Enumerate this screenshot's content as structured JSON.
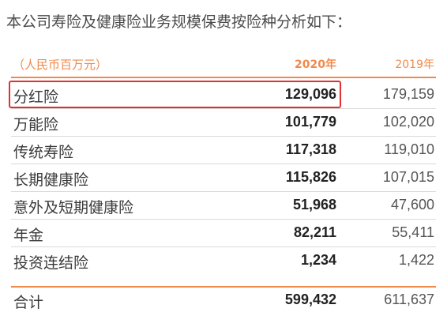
{
  "intro": "本公司寿险及健康险业务规模保费按险种分析如下：",
  "table": {
    "unit": "（人民币百万元）",
    "col_2020": "2020年",
    "col_2019": "2019年",
    "rows": [
      {
        "name": "分红险",
        "v2020": "129,096",
        "v2019": "179,159"
      },
      {
        "name": "万能险",
        "v2020": "101,779",
        "v2019": "102,020"
      },
      {
        "name": "传统寿险",
        "v2020": "117,318",
        "v2019": "119,010"
      },
      {
        "name": "长期健康险",
        "v2020": "115,826",
        "v2019": "107,015"
      },
      {
        "name": "意外及短期健康险",
        "v2020": "51,968",
        "v2019": "47,600"
      },
      {
        "name": "年金",
        "v2020": "82,211",
        "v2019": "55,411"
      },
      {
        "name": "投资连结险",
        "v2020": "1,234",
        "v2019": "1,422"
      }
    ],
    "total": {
      "name": "合计",
      "v2020": "599,432",
      "v2019": "611,637"
    }
  },
  "colors": {
    "accent": "#f08a4b",
    "highlight": "#e03131"
  }
}
